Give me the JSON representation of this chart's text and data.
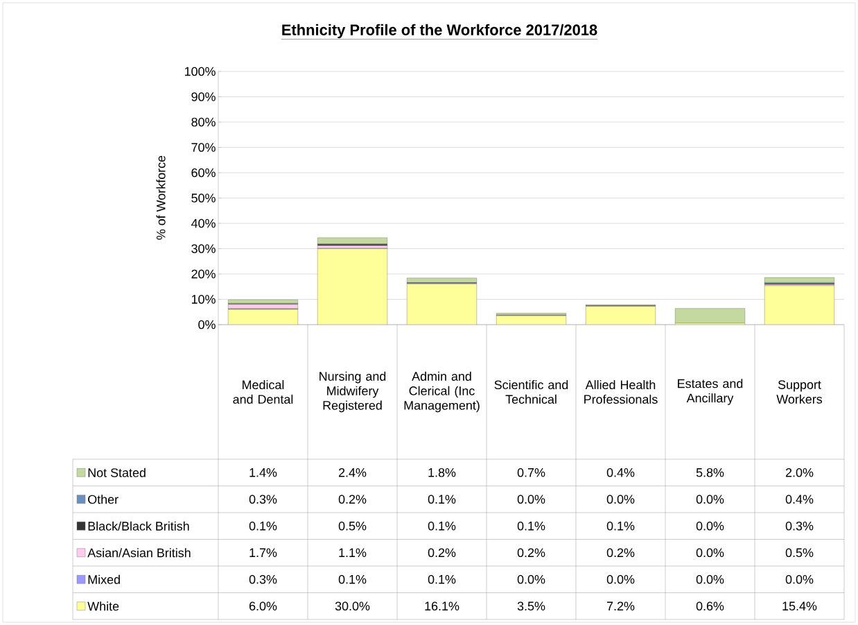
{
  "chart_data": {
    "type": "bar",
    "title": "Ethnicity Profile of the Workforce 2017/2018",
    "ylabel": "% of Workforce",
    "categories": [
      "Medical and Dental",
      "Nursing and Midwifery Registered",
      "Admin and Clerical (Inc Management)",
      "Scientific and Technical",
      "Allied Health Professionals",
      "Estates and Ancillary",
      "Support Workers"
    ],
    "stacked": true,
    "grid": "y",
    "legend": "bottom left",
    "ylim": [
      0,
      100
    ],
    "yticks": [
      {
        "value": 0,
        "label": "0%"
      },
      {
        "value": 10,
        "label": "10%"
      },
      {
        "value": 20,
        "label": "20%"
      },
      {
        "value": 30,
        "label": "30%"
      },
      {
        "value": 40,
        "label": "40%"
      },
      {
        "value": 50,
        "label": "50%"
      },
      {
        "value": 60,
        "label": "60%"
      },
      {
        "value": 70,
        "label": "70%"
      },
      {
        "value": 80,
        "label": "80%"
      },
      {
        "value": 90,
        "label": "90%"
      },
      {
        "value": 100,
        "label": "100%"
      }
    ],
    "series": [
      {
        "name": "White",
        "color": "#ffff99",
        "values": [
          6.0,
          30.0,
          16.1,
          3.5,
          7.2,
          0.6,
          15.4
        ],
        "value_labels": [
          "6.0%",
          "30.0%",
          "16.1%",
          "3.5%",
          "7.2%",
          "0.6%",
          "15.4%"
        ]
      },
      {
        "name": "Mixed",
        "color": "#9999ff",
        "values": [
          0.3,
          0.1,
          0.1,
          0.0,
          0.0,
          0.0,
          0.0
        ],
        "value_labels": [
          "0.3%",
          "0.1%",
          "0.1%",
          "0.0%",
          "0.0%",
          "0.0%",
          "0.0%"
        ]
      },
      {
        "name": "Asian/Asian British",
        "color": "#ffccee",
        "values": [
          1.7,
          1.1,
          0.2,
          0.2,
          0.2,
          0.0,
          0.5
        ],
        "value_labels": [
          "1.7%",
          "1.1%",
          "0.2%",
          "0.2%",
          "0.2%",
          "0.0%",
          "0.5%"
        ]
      },
      {
        "name": "Black/Black British",
        "color": "#333333",
        "values": [
          0.1,
          0.5,
          0.1,
          0.1,
          0.1,
          0.0,
          0.3
        ],
        "value_labels": [
          "0.1%",
          "0.5%",
          "0.1%",
          "0.1%",
          "0.1%",
          "0.0%",
          "0.3%"
        ]
      },
      {
        "name": "Other",
        "color": "#6b8fbf",
        "values": [
          0.3,
          0.2,
          0.1,
          0.0,
          0.0,
          0.0,
          0.4
        ],
        "value_labels": [
          "0.3%",
          "0.2%",
          "0.1%",
          "0.0%",
          "0.0%",
          "0.0%",
          "0.4%"
        ]
      },
      {
        "name": "Not Stated",
        "color": "#c4d9a0",
        "values": [
          1.4,
          2.4,
          1.8,
          0.7,
          0.4,
          5.8,
          2.0
        ],
        "value_labels": [
          "1.4%",
          "2.4%",
          "1.8%",
          "0.7%",
          "0.4%",
          "5.8%",
          "2.0%"
        ]
      }
    ]
  }
}
